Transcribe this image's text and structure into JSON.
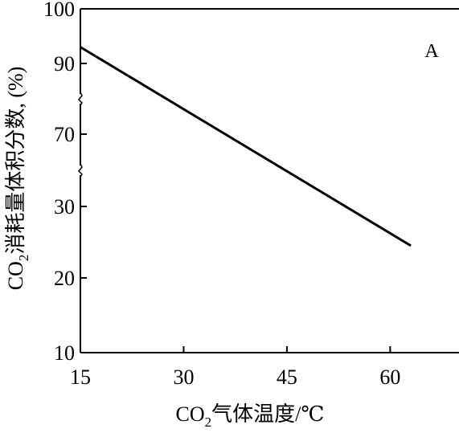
{
  "chart_data": {
    "type": "line",
    "panel_label": "A",
    "xlabel": {
      "prefix": "CO",
      "sub": "2",
      "suffix": "气体温度/℃"
    },
    "ylabel": {
      "prefix": "CO",
      "sub": "2",
      "suffix": "消耗量体积分数, (%)"
    },
    "x_ticks": [
      15,
      30,
      45,
      60
    ],
    "xlim": [
      15,
      70
    ],
    "y_ticks": [
      10,
      20,
      30,
      70,
      90,
      100
    ],
    "y_axis_breaks": [
      80,
      50
    ],
    "grid": false,
    "series": [
      {
        "x": [
          15,
          63
        ],
        "y": [
          93,
          24.5
        ]
      }
    ]
  }
}
